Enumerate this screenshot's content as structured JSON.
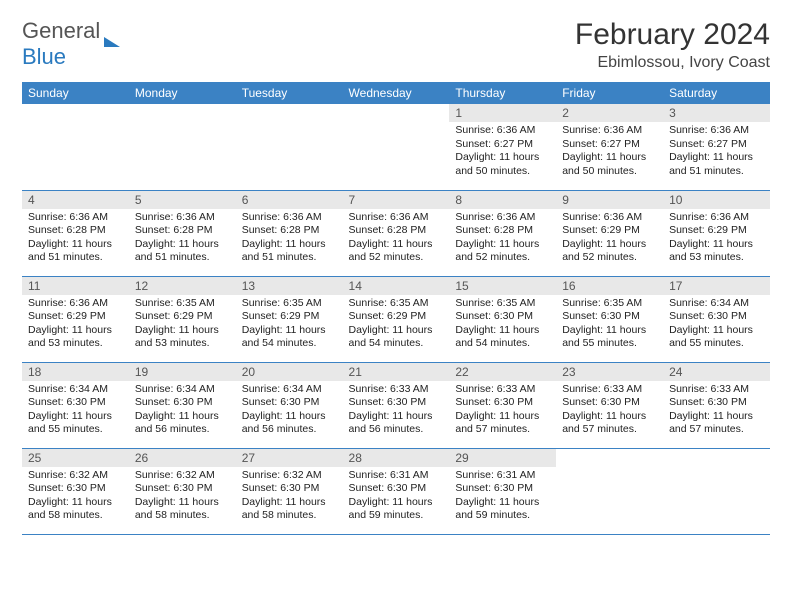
{
  "logo": {
    "text1": "General",
    "text2": "Blue"
  },
  "header": {
    "month": "February 2024",
    "location": "Ebimlossou, Ivory Coast"
  },
  "colors": {
    "header_bg": "#3b82c4",
    "header_fg": "#ffffff",
    "daynum_bg": "#e8e8e8",
    "border": "#3b82c4",
    "logo_blue": "#2a7abf"
  },
  "weekdays": [
    "Sunday",
    "Monday",
    "Tuesday",
    "Wednesday",
    "Thursday",
    "Friday",
    "Saturday"
  ],
  "weeks": [
    [
      {
        "empty": true
      },
      {
        "empty": true
      },
      {
        "empty": true
      },
      {
        "empty": true
      },
      {
        "day": "1",
        "sunrise": "Sunrise: 6:36 AM",
        "sunset": "Sunset: 6:27 PM",
        "daylight": "Daylight: 11 hours and 50 minutes."
      },
      {
        "day": "2",
        "sunrise": "Sunrise: 6:36 AM",
        "sunset": "Sunset: 6:27 PM",
        "daylight": "Daylight: 11 hours and 50 minutes."
      },
      {
        "day": "3",
        "sunrise": "Sunrise: 6:36 AM",
        "sunset": "Sunset: 6:27 PM",
        "daylight": "Daylight: 11 hours and 51 minutes."
      }
    ],
    [
      {
        "day": "4",
        "sunrise": "Sunrise: 6:36 AM",
        "sunset": "Sunset: 6:28 PM",
        "daylight": "Daylight: 11 hours and 51 minutes."
      },
      {
        "day": "5",
        "sunrise": "Sunrise: 6:36 AM",
        "sunset": "Sunset: 6:28 PM",
        "daylight": "Daylight: 11 hours and 51 minutes."
      },
      {
        "day": "6",
        "sunrise": "Sunrise: 6:36 AM",
        "sunset": "Sunset: 6:28 PM",
        "daylight": "Daylight: 11 hours and 51 minutes."
      },
      {
        "day": "7",
        "sunrise": "Sunrise: 6:36 AM",
        "sunset": "Sunset: 6:28 PM",
        "daylight": "Daylight: 11 hours and 52 minutes."
      },
      {
        "day": "8",
        "sunrise": "Sunrise: 6:36 AM",
        "sunset": "Sunset: 6:28 PM",
        "daylight": "Daylight: 11 hours and 52 minutes."
      },
      {
        "day": "9",
        "sunrise": "Sunrise: 6:36 AM",
        "sunset": "Sunset: 6:29 PM",
        "daylight": "Daylight: 11 hours and 52 minutes."
      },
      {
        "day": "10",
        "sunrise": "Sunrise: 6:36 AM",
        "sunset": "Sunset: 6:29 PM",
        "daylight": "Daylight: 11 hours and 53 minutes."
      }
    ],
    [
      {
        "day": "11",
        "sunrise": "Sunrise: 6:36 AM",
        "sunset": "Sunset: 6:29 PM",
        "daylight": "Daylight: 11 hours and 53 minutes."
      },
      {
        "day": "12",
        "sunrise": "Sunrise: 6:35 AM",
        "sunset": "Sunset: 6:29 PM",
        "daylight": "Daylight: 11 hours and 53 minutes."
      },
      {
        "day": "13",
        "sunrise": "Sunrise: 6:35 AM",
        "sunset": "Sunset: 6:29 PM",
        "daylight": "Daylight: 11 hours and 54 minutes."
      },
      {
        "day": "14",
        "sunrise": "Sunrise: 6:35 AM",
        "sunset": "Sunset: 6:29 PM",
        "daylight": "Daylight: 11 hours and 54 minutes."
      },
      {
        "day": "15",
        "sunrise": "Sunrise: 6:35 AM",
        "sunset": "Sunset: 6:30 PM",
        "daylight": "Daylight: 11 hours and 54 minutes."
      },
      {
        "day": "16",
        "sunrise": "Sunrise: 6:35 AM",
        "sunset": "Sunset: 6:30 PM",
        "daylight": "Daylight: 11 hours and 55 minutes."
      },
      {
        "day": "17",
        "sunrise": "Sunrise: 6:34 AM",
        "sunset": "Sunset: 6:30 PM",
        "daylight": "Daylight: 11 hours and 55 minutes."
      }
    ],
    [
      {
        "day": "18",
        "sunrise": "Sunrise: 6:34 AM",
        "sunset": "Sunset: 6:30 PM",
        "daylight": "Daylight: 11 hours and 55 minutes."
      },
      {
        "day": "19",
        "sunrise": "Sunrise: 6:34 AM",
        "sunset": "Sunset: 6:30 PM",
        "daylight": "Daylight: 11 hours and 56 minutes."
      },
      {
        "day": "20",
        "sunrise": "Sunrise: 6:34 AM",
        "sunset": "Sunset: 6:30 PM",
        "daylight": "Daylight: 11 hours and 56 minutes."
      },
      {
        "day": "21",
        "sunrise": "Sunrise: 6:33 AM",
        "sunset": "Sunset: 6:30 PM",
        "daylight": "Daylight: 11 hours and 56 minutes."
      },
      {
        "day": "22",
        "sunrise": "Sunrise: 6:33 AM",
        "sunset": "Sunset: 6:30 PM",
        "daylight": "Daylight: 11 hours and 57 minutes."
      },
      {
        "day": "23",
        "sunrise": "Sunrise: 6:33 AM",
        "sunset": "Sunset: 6:30 PM",
        "daylight": "Daylight: 11 hours and 57 minutes."
      },
      {
        "day": "24",
        "sunrise": "Sunrise: 6:33 AM",
        "sunset": "Sunset: 6:30 PM",
        "daylight": "Daylight: 11 hours and 57 minutes."
      }
    ],
    [
      {
        "day": "25",
        "sunrise": "Sunrise: 6:32 AM",
        "sunset": "Sunset: 6:30 PM",
        "daylight": "Daylight: 11 hours and 58 minutes."
      },
      {
        "day": "26",
        "sunrise": "Sunrise: 6:32 AM",
        "sunset": "Sunset: 6:30 PM",
        "daylight": "Daylight: 11 hours and 58 minutes."
      },
      {
        "day": "27",
        "sunrise": "Sunrise: 6:32 AM",
        "sunset": "Sunset: 6:30 PM",
        "daylight": "Daylight: 11 hours and 58 minutes."
      },
      {
        "day": "28",
        "sunrise": "Sunrise: 6:31 AM",
        "sunset": "Sunset: 6:30 PM",
        "daylight": "Daylight: 11 hours and 59 minutes."
      },
      {
        "day": "29",
        "sunrise": "Sunrise: 6:31 AM",
        "sunset": "Sunset: 6:30 PM",
        "daylight": "Daylight: 11 hours and 59 minutes."
      },
      {
        "empty": true
      },
      {
        "empty": true
      }
    ]
  ]
}
